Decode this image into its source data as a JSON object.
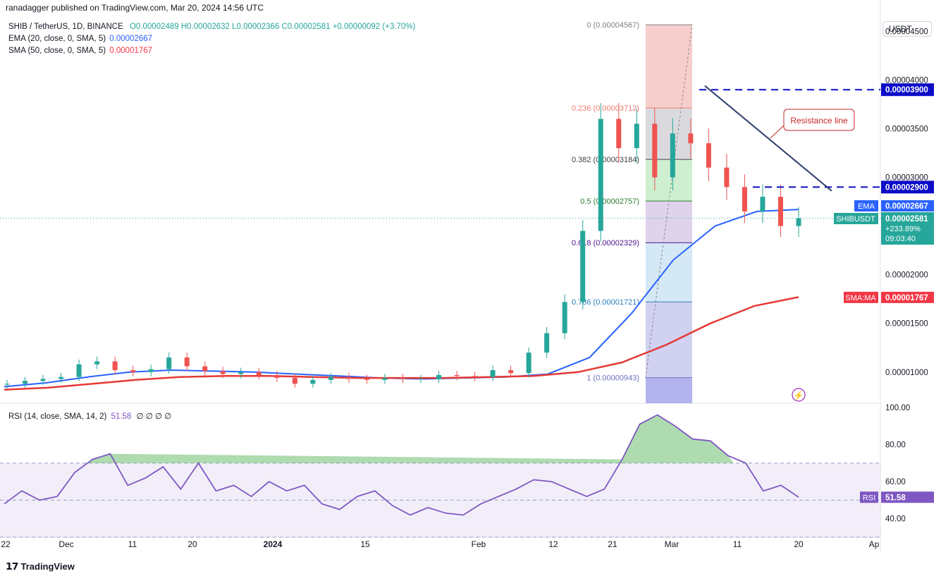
{
  "header": {
    "publisher_line": "ranadagger published on TradingView.com, Mar 20, 2024 14:56 UTC"
  },
  "legend": {
    "symbol": "SHIB / TetherUS, 1D, BINANCE",
    "ohlc": "O0.00002489 H0.00002632 L0.00002366 C0.00002581 +0.00000092 (+3.70%)",
    "ema_label": "EMA (20, close, 0, SMA, 5)",
    "ema_value": "0.00002667",
    "sma_label": "SMA (50, close, 0, SMA, 5)",
    "sma_value": "0.00001767"
  },
  "rsi_legend": {
    "label": "RSI (14, close, SMA, 14, 2)",
    "value": "51.58",
    "extras": "∅ ∅ ∅ ∅"
  },
  "price_axis": {
    "unit": "USDT",
    "ticks": [
      "0.00004500",
      "0.00004000",
      "0.00003500",
      "0.00003000",
      "0.00002000",
      "0.00001500",
      "0.00001000"
    ],
    "levels": [
      {
        "label": "0.00003900",
        "value": 3.9e-05,
        "color": "#0c0cc8"
      },
      {
        "label": "0.00002900",
        "value": 2.9e-05,
        "color": "#0c0cc8"
      }
    ],
    "ema_tag": {
      "name": "EMA",
      "value": "0.00002667",
      "color": "#2962ff"
    },
    "price_tag": {
      "name": "SHIBUSDT",
      "value": "0.00002581",
      "change": "+233.89%",
      "countdown": "09:03:40",
      "color": "#26a69a"
    },
    "sma_tag": {
      "name": "SMA:MA",
      "value": "0.00001767",
      "color": "#f23645"
    }
  },
  "rsi_axis": {
    "ticks": [
      "100.00",
      "80.00",
      "60.00",
      "40.00"
    ],
    "tag": {
      "name": "RSI",
      "value": "51.58",
      "color": "#7e57c2"
    }
  },
  "time_axis": {
    "labels": [
      "22",
      "Dec",
      "11",
      "20",
      "2024",
      "15",
      "Feb",
      "12",
      "21",
      "Mar",
      "11",
      "20",
      "Ap"
    ]
  },
  "fib": {
    "levels": [
      {
        "ratio": "0",
        "label": "0 (0.00004567)",
        "value": 4.567e-05,
        "color": "#808080"
      },
      {
        "ratio": "0.236",
        "label": "0.236 (0.00003712)",
        "value": 3.712e-05,
        "color": "#f57c6e"
      },
      {
        "ratio": "0.382",
        "label": "0.382 (0.00003184)",
        "value": 3.184e-05,
        "color": "#404040"
      },
      {
        "ratio": "0.5",
        "label": "0.5 (0.00002757)",
        "value": 2.757e-05,
        "color": "#2e7d32"
      },
      {
        "ratio": "0.618",
        "label": "0.618 (0.00002329)",
        "value": 2.329e-05,
        "color": "#4a148c"
      },
      {
        "ratio": "0.786",
        "label": "0.786 (0.00001721)",
        "value": 1.721e-05,
        "color": "#2a7fb8"
      },
      {
        "ratio": "1",
        "label": "1 (0.00000943)",
        "value": 9.43e-06,
        "color": "#7070c0"
      }
    ]
  },
  "annotation": {
    "text": "Resistance line",
    "color": "#c62828"
  },
  "footer": {
    "brand": "TradingView"
  },
  "chart_data": {
    "type": "candlestick",
    "title": "SHIB / TetherUS, 1D, BINANCE",
    "ylim": [
      6.8e-06,
      4.64e-05
    ],
    "series": [
      {
        "name": "SHIB / TetherUS",
        "close": [
          8.8e-06,
          9.1e-06,
          9.3e-06,
          9.5e-06,
          1.08e-05,
          1.11e-05,
          1.02e-05,
          1e-05,
          1.03e-05,
          1.15e-05,
          1.06e-05,
          1.01e-05,
          9.8e-06,
          1e-05,
          9.7e-06,
          9.4e-06,
          8.8e-06,
          9.2e-06,
          9.5e-06,
          9.3e-06,
          9.2e-06,
          9.4e-06,
          9.3e-06,
          9.3e-06,
          9.7e-06,
          9.6e-06,
          9.5e-06,
          1.02e-05,
          9.9e-06,
          1.2e-05,
          1.4e-05,
          1.72e-05,
          2.45e-05,
          3.6e-05,
          3.3e-05,
          3.55e-05,
          3e-05,
          3.45e-05,
          3.35e-05,
          3.1e-05,
          2.9e-05,
          2.65e-05,
          2.8e-05,
          2.5e-05,
          2.58e-05
        ]
      },
      {
        "name": "EMA (20, close, 0, SMA, 5)",
        "values": [
          8.5e-06,
          8.9e-06,
          9.5e-06,
          1e-05,
          1.02e-05,
          1.01e-05,
          1e-05,
          9.8e-06,
          9.6e-06,
          9.4e-06,
          9.3e-06,
          9.4e-06,
          9.5e-06,
          9.8e-06,
          1.15e-05,
          1.6e-05,
          2.15e-05,
          2.5e-05,
          2.65e-05,
          2.67e-05
        ]
      },
      {
        "name": "SMA (50, close, 0, SMA, 5)",
        "values": [
          8.2e-06,
          8.4e-06,
          8.8e-06,
          9.2e-06,
          9.5e-06,
          9.6e-06,
          9.6e-06,
          9.5e-06,
          9.4e-06,
          9.4e-06,
          9.4e-06,
          9.5e-06,
          9.6e-06,
          1e-05,
          1.1e-05,
          1.28e-05,
          1.5e-05,
          1.68e-05,
          1.77e-05
        ]
      },
      {
        "name": "RSI (14, close, SMA, 14, 2)",
        "values": [
          48,
          55,
          50,
          52,
          65,
          72,
          75,
          58,
          62,
          68,
          56,
          70,
          55,
          58,
          52,
          60,
          55,
          58,
          48,
          45,
          52,
          55,
          47,
          42,
          46,
          43,
          42,
          48,
          52,
          56,
          61,
          60,
          56,
          52,
          56,
          72,
          91,
          96,
          90,
          83,
          82,
          74,
          70,
          55,
          58,
          51.58
        ]
      }
    ],
    "x_labels": [
      "22",
      "Dec",
      "11",
      "20",
      "2024",
      "15",
      "Feb",
      "12",
      "21",
      "Mar",
      "11",
      "20",
      "Ap"
    ],
    "rsi_ylim": [
      30,
      100
    ]
  }
}
